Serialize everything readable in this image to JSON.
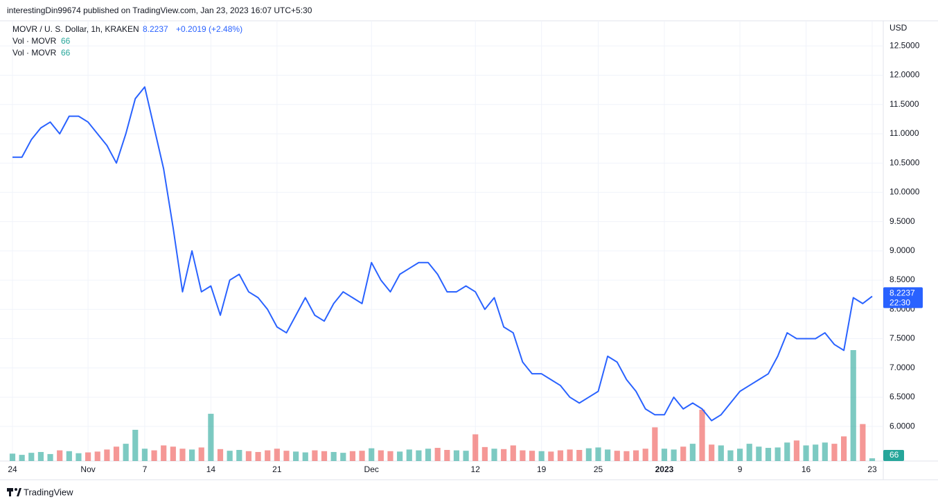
{
  "header": {
    "publisher": "interestingDin99674 published on TradingView.com, Jan 23, 2023 16:07 UTC+5:30"
  },
  "footer": {
    "brand": "TradingView"
  },
  "chart_data": {
    "type": "line",
    "title": "MOVR / U. S. Dollar, 1h, KRAKEN",
    "change": "+0.2019 (+2.48%)",
    "currency": "USD",
    "last_time": "22:30",
    "categories": [
      "24",
      null,
      null,
      null,
      null,
      null,
      null,
      null,
      "Nov",
      null,
      null,
      null,
      null,
      null,
      "7",
      null,
      null,
      null,
      null,
      null,
      null,
      "14",
      null,
      null,
      null,
      null,
      null,
      null,
      "21",
      null,
      null,
      null,
      null,
      null,
      null,
      null,
      null,
      null,
      "Dec",
      null,
      null,
      null,
      null,
      null,
      null,
      null,
      null,
      null,
      null,
      "12",
      null,
      null,
      null,
      null,
      null,
      null,
      "19",
      null,
      null,
      null,
      null,
      null,
      "25",
      null,
      null,
      null,
      null,
      null,
      null,
      "2023",
      null,
      null,
      null,
      null,
      null,
      null,
      null,
      "9",
      null,
      null,
      null,
      null,
      null,
      null,
      "16",
      null,
      null,
      null,
      null,
      null,
      null,
      "23"
    ],
    "series": [
      {
        "color": "#2962ff",
        "values": [
          10.6,
          10.6,
          10.9,
          11.1,
          11.2,
          11.0,
          11.3,
          11.3,
          11.2,
          11.0,
          10.8,
          10.5,
          11.0,
          11.6,
          11.8,
          11.1,
          10.4,
          9.4,
          8.3,
          9.0,
          8.3,
          8.4,
          7.9,
          8.5,
          8.6,
          8.3,
          8.2,
          8.0,
          7.7,
          7.6,
          7.9,
          8.2,
          7.9,
          7.8,
          8.1,
          8.3,
          8.2,
          8.1,
          8.8,
          8.5,
          8.3,
          8.6,
          8.7,
          8.8,
          8.8,
          8.6,
          8.3,
          8.3,
          8.4,
          8.3,
          8.0,
          8.2,
          7.7,
          7.6,
          7.1,
          6.9,
          6.9,
          6.8,
          6.7,
          6.5,
          6.4,
          6.5,
          6.6,
          7.2,
          7.1,
          6.8,
          6.6,
          6.3,
          6.2,
          6.2,
          6.5,
          6.3,
          6.4,
          6.3,
          6.1,
          6.2,
          6.4,
          6.6,
          6.7,
          6.8,
          6.9,
          7.2,
          7.6,
          7.5,
          7.5,
          7.5,
          7.6,
          7.4,
          7.3,
          8.2,
          8.1,
          8.2237
        ]
      }
    ],
    "volume": {
      "name": "Vol · MOVR",
      "up_color": "#26a69a",
      "down_color": "#ef5350",
      "values": [
        180,
        150,
        200,
        220,
        170,
        260,
        240,
        190,
        210,
        230,
        280,
        350,
        420,
        760,
        300,
        260,
        380,
        350,
        300,
        280,
        330,
        1150,
        290,
        250,
        270,
        240,
        220,
        260,
        300,
        250,
        230,
        210,
        260,
        240,
        220,
        200,
        240,
        250,
        310,
        260,
        240,
        230,
        280,
        260,
        300,
        320,
        270,
        260,
        250,
        650,
        340,
        300,
        290,
        380,
        260,
        250,
        240,
        230,
        260,
        280,
        270,
        310,
        330,
        280,
        250,
        240,
        260,
        300,
        820,
        300,
        280,
        350,
        420,
        1250,
        400,
        380,
        260,
        300,
        420,
        350,
        320,
        330,
        450,
        500,
        380,
        400,
        450,
        420,
        600,
        2700,
        900,
        66
      ]
    },
    "ylim": [
      5.41,
      12.93
    ],
    "yticks": [
      {
        "value": 6.0,
        "label": "6.0000"
      },
      {
        "value": 6.5,
        "label": "6.5000"
      },
      {
        "value": 7.0,
        "label": "7.0000"
      },
      {
        "value": 7.5,
        "label": "7.5000"
      },
      {
        "value": 8.0,
        "label": "8.0000"
      },
      {
        "value": 8.5,
        "label": "8.5000"
      },
      {
        "value": 9.0,
        "label": "9.0000"
      },
      {
        "value": 9.5,
        "label": "9.5000"
      },
      {
        "value": 10.0,
        "label": "10.0000"
      },
      {
        "value": 10.5,
        "label": "10.5000"
      },
      {
        "value": 11.0,
        "label": "11.0000"
      },
      {
        "value": 11.5,
        "label": "11.5000"
      },
      {
        "value": 12.0,
        "label": "12.0000"
      },
      {
        "value": 12.5,
        "label": "12.5000"
      }
    ],
    "grid": true
  }
}
